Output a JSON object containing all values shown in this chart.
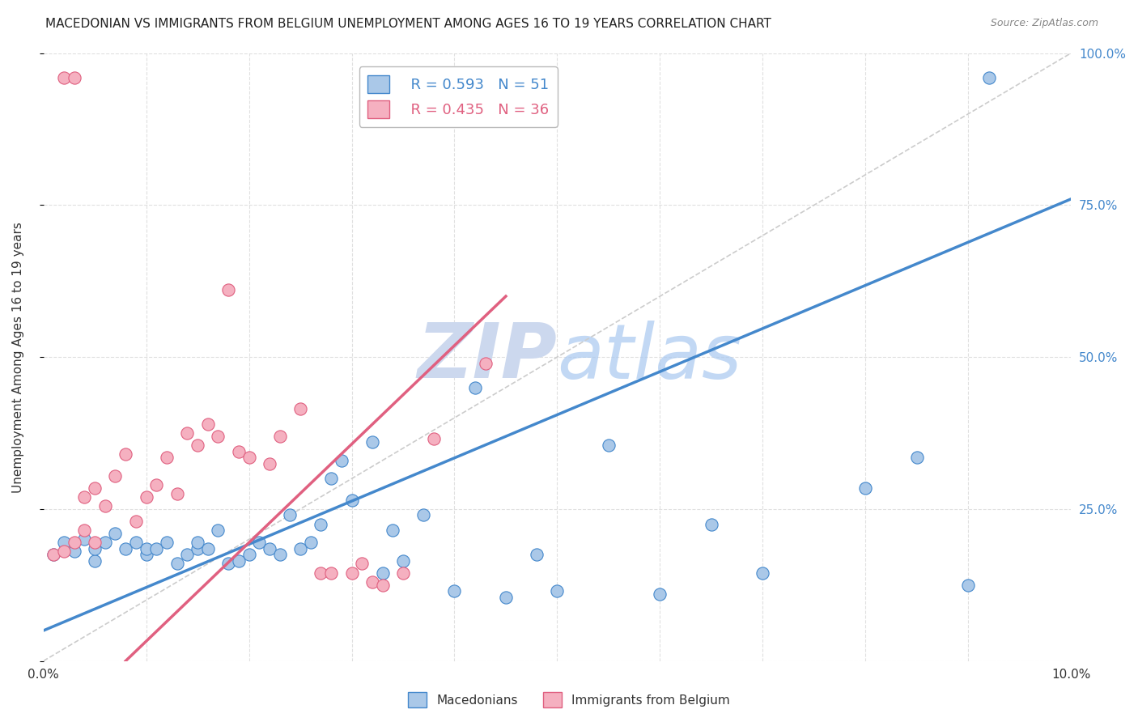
{
  "title": "MACEDONIAN VS IMMIGRANTS FROM BELGIUM UNEMPLOYMENT AMONG AGES 16 TO 19 YEARS CORRELATION CHART",
  "source": "Source: ZipAtlas.com",
  "ylabel": "Unemployment Among Ages 16 to 19 years",
  "xlim": [
    0.0,
    0.1
  ],
  "ylim": [
    0.0,
    1.0
  ],
  "yticks": [
    0.0,
    0.25,
    0.5,
    0.75,
    1.0
  ],
  "ytick_labels": [
    "",
    "25.0%",
    "50.0%",
    "75.0%",
    "100.0%"
  ],
  "legend_blue_r": "R = 0.593",
  "legend_blue_n": "N = 51",
  "legend_pink_r": "R = 0.435",
  "legend_pink_n": "N = 36",
  "blue_scatter_x": [
    0.001,
    0.002,
    0.003,
    0.004,
    0.005,
    0.005,
    0.006,
    0.007,
    0.008,
    0.009,
    0.01,
    0.01,
    0.011,
    0.012,
    0.013,
    0.014,
    0.015,
    0.015,
    0.016,
    0.017,
    0.018,
    0.019,
    0.02,
    0.021,
    0.022,
    0.023,
    0.024,
    0.025,
    0.026,
    0.027,
    0.028,
    0.029,
    0.03,
    0.032,
    0.033,
    0.034,
    0.035,
    0.037,
    0.04,
    0.042,
    0.045,
    0.048,
    0.05,
    0.055,
    0.06,
    0.065,
    0.07,
    0.08,
    0.085,
    0.09,
    0.092
  ],
  "blue_scatter_y": [
    0.175,
    0.195,
    0.18,
    0.2,
    0.165,
    0.185,
    0.195,
    0.21,
    0.185,
    0.195,
    0.175,
    0.185,
    0.185,
    0.195,
    0.16,
    0.175,
    0.185,
    0.195,
    0.185,
    0.215,
    0.16,
    0.165,
    0.175,
    0.195,
    0.185,
    0.175,
    0.24,
    0.185,
    0.195,
    0.225,
    0.3,
    0.33,
    0.265,
    0.36,
    0.145,
    0.215,
    0.165,
    0.24,
    0.115,
    0.45,
    0.105,
    0.175,
    0.115,
    0.355,
    0.11,
    0.225,
    0.145,
    0.285,
    0.335,
    0.125,
    0.96
  ],
  "pink_scatter_x": [
    0.001,
    0.002,
    0.003,
    0.004,
    0.004,
    0.005,
    0.005,
    0.006,
    0.007,
    0.008,
    0.009,
    0.01,
    0.011,
    0.012,
    0.013,
    0.014,
    0.015,
    0.016,
    0.017,
    0.018,
    0.019,
    0.02,
    0.022,
    0.023,
    0.025,
    0.027,
    0.028,
    0.03,
    0.031,
    0.032,
    0.033,
    0.035,
    0.038,
    0.043,
    0.002,
    0.003
  ],
  "pink_scatter_y": [
    0.175,
    0.18,
    0.195,
    0.215,
    0.27,
    0.195,
    0.285,
    0.255,
    0.305,
    0.34,
    0.23,
    0.27,
    0.29,
    0.335,
    0.275,
    0.375,
    0.355,
    0.39,
    0.37,
    0.61,
    0.345,
    0.335,
    0.325,
    0.37,
    0.415,
    0.145,
    0.145,
    0.145,
    0.16,
    0.13,
    0.125,
    0.145,
    0.365,
    0.49,
    0.96,
    0.96
  ],
  "blue_color": "#aac8e8",
  "pink_color": "#f5b0c0",
  "blue_line_color": "#4488cc",
  "pink_line_color": "#e06080",
  "diag_color": "#cccccc",
  "watermark_color": "#ccd8ee",
  "blue_trend_x0": 0.0,
  "blue_trend_y0": 0.05,
  "blue_trend_x1": 0.1,
  "blue_trend_y1": 0.76,
  "pink_trend_x0": 0.008,
  "pink_trend_y0": 0.0,
  "pink_trend_x1": 0.045,
  "pink_trend_y1": 0.6
}
